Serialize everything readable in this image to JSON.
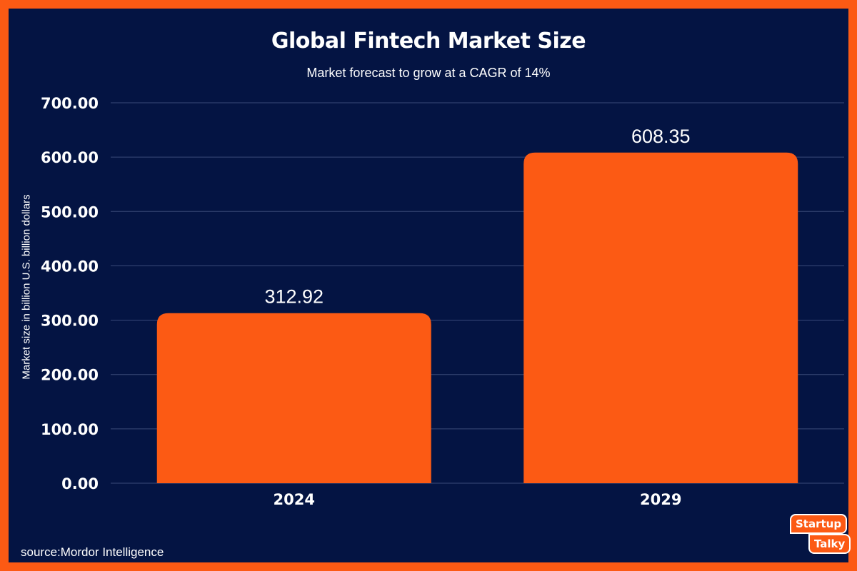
{
  "chart_data": {
    "type": "bar",
    "title": "Global Fintech Market Size",
    "subtitle": "Market forecast to grow at a CAGR of 14%",
    "xlabel": "",
    "ylabel": "Market size in billion U.S. billion dollars",
    "categories": [
      "2024",
      "2029"
    ],
    "values": [
      312.92,
      608.35
    ],
    "data_labels": [
      "312.92",
      "608.35"
    ],
    "ylim": [
      0,
      700
    ],
    "yticks": [
      0,
      100,
      200,
      300,
      400,
      500,
      600,
      700
    ],
    "ytick_labels": [
      "0.00",
      "100.00",
      "200.00",
      "300.00",
      "400.00",
      "500.00",
      "600.00",
      "700.00"
    ],
    "grid": true,
    "legend": "none",
    "colors": {
      "bar": "#fc5a14",
      "background": "#041443",
      "frame": "#fc5a14",
      "grid": "#3a4a78",
      "text": "#ffffff"
    }
  },
  "source": "source:Mordor Intelligence",
  "brand": {
    "line1": "Startup",
    "line2": "Talky"
  }
}
